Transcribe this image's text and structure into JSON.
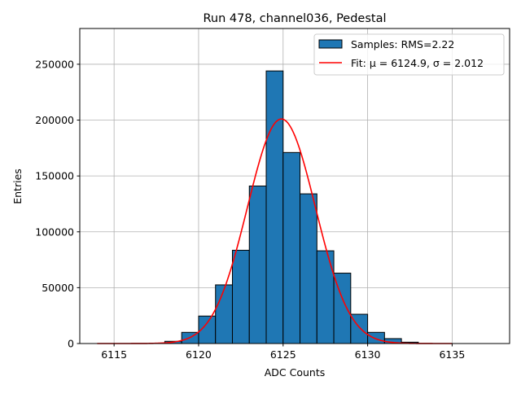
{
  "chart_data": {
    "type": "bar",
    "title": "Run 478, channel036, Pedestal",
    "xlabel": "ADC Counts",
    "ylabel": "Entries",
    "xlim": [
      6112.97,
      6138.4
    ],
    "ylim": [
      0,
      282000
    ],
    "xticks": [
      6115,
      6120,
      6125,
      6130,
      6135
    ],
    "yticks": [
      0,
      50000,
      100000,
      150000,
      200000,
      250000
    ],
    "grid": true,
    "legend_position": "top-right",
    "histogram": {
      "name": "Samples: RMS=2.22",
      "color": "#1f77b4",
      "bin_width": 1,
      "bin_edges_start": [
        6118,
        6119,
        6120,
        6121,
        6122,
        6123,
        6124,
        6125,
        6126,
        6127,
        6128,
        6129,
        6130,
        6131,
        6132
      ],
      "values": [
        2000,
        10000,
        24600,
        52500,
        83500,
        141000,
        244000,
        171000,
        134000,
        83000,
        63000,
        26200,
        10000,
        4400,
        1200
      ]
    },
    "fit": {
      "name_prefix": "Fit: ",
      "name_mu": "μ = 6124.9, ",
      "name_sigma": "σ = 2.012",
      "color": "#ff0000",
      "mu": 6124.9,
      "sigma": 2.012,
      "amplitude": 201000,
      "x_range": [
        6114,
        6135
      ]
    }
  }
}
